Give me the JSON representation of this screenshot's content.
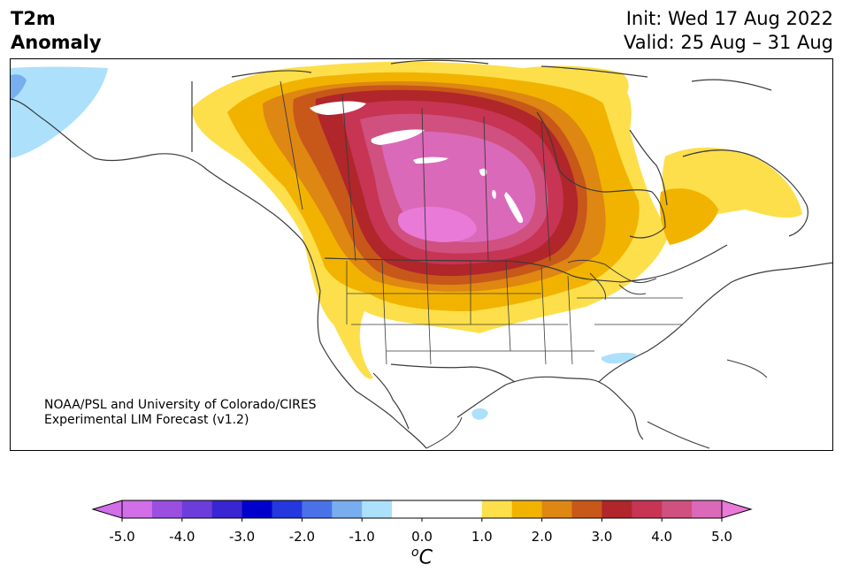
{
  "header": {
    "title_line1": "T2m",
    "title_line2": "Anomaly",
    "init": "Init: Wed 17 Aug 2022",
    "valid": "Valid: 25 Aug – 31 Aug"
  },
  "credit": {
    "line1": "NOAA/PSL and University of Colorado/CIRES",
    "line2": "Experimental LIM Forecast (v1.2)"
  },
  "colorbar": {
    "unit_base": "C",
    "unit_prefix": "o",
    "ticks": [
      "-5.0",
      "-4.0",
      "-3.0",
      "-2.0",
      "-1.0",
      "0.0",
      "1.0",
      "2.0",
      "3.0",
      "4.0",
      "5.0"
    ],
    "levels": [
      -5.0,
      -4.5,
      -4.0,
      -3.5,
      -3.0,
      -2.5,
      -2.0,
      -1.5,
      -1.0,
      -0.5,
      0.5,
      1.0,
      1.5,
      2.0,
      2.5,
      3.0,
      3.5,
      4.0,
      4.5,
      5.0
    ],
    "colors": [
      "#d16ee8",
      "#9a4fe0",
      "#6c3ddb",
      "#3a25d2",
      "#0000cc",
      "#2438dd",
      "#4a72e8",
      "#78aef0",
      "#ade0fb",
      "#ffffff",
      "#ffffff",
      "#fddf4b",
      "#f2b300",
      "#de8712",
      "#c8571a",
      "#b0262a",
      "#c73454",
      "#d0507f",
      "#db69b9",
      "#e97ad8"
    ],
    "under_color": "#d16ee8",
    "over_color": "#e97ad8"
  },
  "map_data": {
    "variable": "2m temperature anomaly",
    "units": "°C",
    "region": "North America",
    "anomaly_levels": [
      {
        "value": 0.5,
        "color": "#fddf4b"
      },
      {
        "value": 1.0,
        "color": "#f2b300"
      },
      {
        "value": 1.5,
        "color": "#de8712"
      },
      {
        "value": 2.0,
        "color": "#c8571a"
      },
      {
        "value": 2.5,
        "color": "#b0262a"
      },
      {
        "value": 3.0,
        "color": "#c73454"
      },
      {
        "value": 3.5,
        "color": "#d0507f"
      },
      {
        "value": 4.0,
        "color": "#db69b9"
      },
      {
        "value": 4.5,
        "color": "#e97ad8"
      }
    ],
    "cold_colors": [
      "#ade0fb",
      "#78aef0"
    ]
  }
}
